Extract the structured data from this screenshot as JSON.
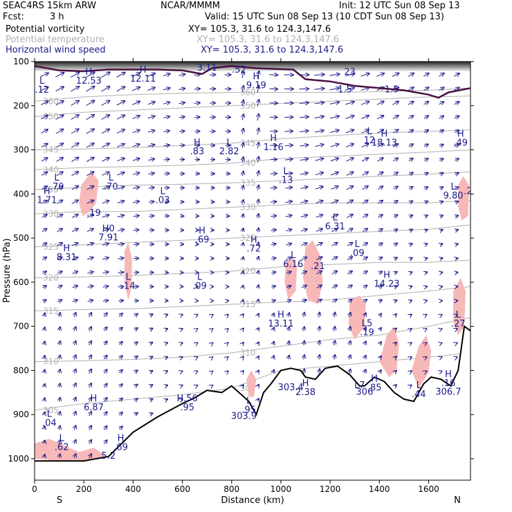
{
  "header": {
    "model": "SEAC4RS 15km ARW",
    "org": "NCAR/MMMM",
    "init": "Init: 12 UTC Sun 08 Sep 13",
    "fcst_label": "Fcst:",
    "fcst_value": "3 h",
    "valid": "Valid: 15 UTC Sun 08 Sep 13 (10 CDT Sun 08 Sep 13)",
    "fields": [
      {
        "name": "Potential vorticity",
        "xy": "XY= 105.3, 31.6 to 124.3,147.6",
        "color": "#000000"
      },
      {
        "name": "Potential temperature",
        "xy": "XY= 105.3, 31.6 to 124.3,147.6",
        "color": "#b0b0b0"
      },
      {
        "name": "Horizontal wind speed",
        "xy": "XY= 105.3, 31.6 to 124.3,147.6",
        "color": "#1a1a8c"
      }
    ]
  },
  "chart_data": {
    "type": "cross-section",
    "xlabel": "Distance (km)",
    "ylabel": "Pressure (hPa)",
    "xlim": [
      0,
      1770
    ],
    "ylim": [
      1050,
      100
    ],
    "x_ticks": [
      0,
      200,
      400,
      600,
      800,
      1000,
      1200,
      1400,
      1600
    ],
    "y_ticks": [
      100,
      200,
      300,
      400,
      500,
      600,
      700,
      800,
      900,
      1000
    ],
    "endpoints": {
      "left": "S",
      "right": "N"
    },
    "colors": {
      "theta": "#b0b0b0",
      "wind": "#1a1a8c",
      "pv_fill": "#f7b8b8",
      "terrain": "#000000",
      "trop": "#4a1040"
    },
    "theta_isolines": [
      {
        "label": "305",
        "values": [
          [
            0,
            890
          ],
          [
            200,
            875
          ],
          [
            400,
            865
          ],
          [
            600,
            855
          ],
          [
            800,
            840
          ],
          [
            1000,
            800
          ],
          [
            1200,
            790
          ],
          [
            1400,
            780
          ],
          [
            1600,
            770
          ],
          [
            1770,
            760
          ]
        ]
      },
      {
        "label": "310",
        "values": [
          [
            0,
            780
          ],
          [
            200,
            778
          ],
          [
            400,
            775
          ],
          [
            600,
            770
          ],
          [
            800,
            760
          ],
          [
            1000,
            745
          ],
          [
            1200,
            730
          ],
          [
            1400,
            720
          ],
          [
            1600,
            700
          ],
          [
            1770,
            680
          ]
        ]
      },
      {
        "label": "315",
        "values": [
          [
            0,
            665
          ],
          [
            200,
            662
          ],
          [
            400,
            660
          ],
          [
            600,
            655
          ],
          [
            800,
            650
          ],
          [
            1000,
            645
          ],
          [
            1200,
            640
          ],
          [
            1400,
            630
          ],
          [
            1600,
            620
          ],
          [
            1770,
            610
          ]
        ]
      },
      {
        "label": "320",
        "values": [
          [
            0,
            590
          ],
          [
            200,
            588
          ],
          [
            400,
            585
          ],
          [
            600,
            580
          ],
          [
            800,
            575
          ],
          [
            1000,
            565
          ],
          [
            1200,
            560
          ],
          [
            1400,
            555
          ],
          [
            1600,
            555
          ],
          [
            1770,
            550
          ]
        ]
      },
      {
        "label": "325",
        "values": [
          [
            0,
            520
          ],
          [
            200,
            515
          ],
          [
            400,
            510
          ],
          [
            600,
            505
          ],
          [
            800,
            500
          ],
          [
            1000,
            495
          ],
          [
            1200,
            490
          ],
          [
            1400,
            485
          ],
          [
            1600,
            480
          ],
          [
            1770,
            470
          ]
        ]
      },
      {
        "label": "330",
        "values": [
          [
            0,
            445
          ],
          [
            200,
            440
          ],
          [
            400,
            440
          ],
          [
            600,
            435
          ],
          [
            800,
            430
          ],
          [
            1000,
            425
          ],
          [
            1200,
            420
          ],
          [
            1400,
            420
          ],
          [
            1600,
            420
          ],
          [
            1770,
            415
          ]
        ]
      },
      {
        "label": "335",
        "values": [
          [
            0,
            390
          ],
          [
            200,
            385
          ],
          [
            400,
            380
          ],
          [
            600,
            378
          ],
          [
            800,
            375
          ],
          [
            1000,
            370
          ],
          [
            1200,
            365
          ],
          [
            1400,
            360
          ],
          [
            1600,
            355
          ],
          [
            1770,
            350
          ]
        ]
      },
      {
        "label": "340",
        "values": [
          [
            0,
            345
          ],
          [
            200,
            340
          ],
          [
            400,
            338
          ],
          [
            600,
            335
          ],
          [
            800,
            330
          ],
          [
            1000,
            320
          ],
          [
            1200,
            315
          ],
          [
            1400,
            310
          ],
          [
            1600,
            305
          ],
          [
            1770,
            300
          ]
        ]
      },
      {
        "label": "345",
        "values": [
          [
            0,
            300
          ],
          [
            200,
            298
          ],
          [
            400,
            295
          ],
          [
            600,
            290
          ],
          [
            800,
            285
          ],
          [
            1000,
            275
          ],
          [
            1200,
            268
          ],
          [
            1400,
            262
          ],
          [
            1600,
            258
          ],
          [
            1770,
            255
          ]
        ]
      },
      {
        "label": "350",
        "values": [
          [
            0,
            225
          ],
          [
            200,
            215
          ],
          [
            400,
            210
          ],
          [
            600,
            205
          ],
          [
            800,
            200
          ],
          [
            1000,
            195
          ],
          [
            1200,
            190
          ],
          [
            1400,
            185
          ],
          [
            1600,
            180
          ],
          [
            1770,
            178
          ]
        ]
      },
      {
        "label": "360",
        "values": [
          [
            0,
            190
          ],
          [
            200,
            180
          ],
          [
            400,
            175
          ],
          [
            600,
            172
          ],
          [
            800,
            170
          ],
          [
            1000,
            170
          ],
          [
            1200,
            170
          ],
          [
            1400,
            168
          ],
          [
            1600,
            165
          ],
          [
            1770,
            160
          ]
        ]
      }
    ],
    "terrain": [
      [
        0,
        1005
      ],
      [
        100,
        1005
      ],
      [
        200,
        1005
      ],
      [
        300,
        995
      ],
      [
        400,
        940
      ],
      [
        500,
        905
      ],
      [
        600,
        875
      ],
      [
        650,
        862
      ],
      [
        700,
        845
      ],
      [
        760,
        850
      ],
      [
        800,
        835
      ],
      [
        840,
        855
      ],
      [
        870,
        870
      ],
      [
        900,
        900
      ],
      [
        930,
        850
      ],
      [
        960,
        830
      ],
      [
        1000,
        800
      ],
      [
        1040,
        795
      ],
      [
        1080,
        800
      ],
      [
        1100,
        815
      ],
      [
        1140,
        820
      ],
      [
        1180,
        795
      ],
      [
        1230,
        790
      ],
      [
        1280,
        810
      ],
      [
        1320,
        835
      ],
      [
        1340,
        835
      ],
      [
        1380,
        815
      ],
      [
        1420,
        825
      ],
      [
        1460,
        850
      ],
      [
        1500,
        865
      ],
      [
        1540,
        870
      ],
      [
        1580,
        830
      ],
      [
        1610,
        815
      ],
      [
        1650,
        820
      ],
      [
        1690,
        835
      ],
      [
        1720,
        800
      ],
      [
        1745,
        700
      ],
      [
        1770,
        710
      ]
    ],
    "tropopause": [
      [
        0,
        110
      ],
      [
        100,
        120
      ],
      [
        200,
        122
      ],
      [
        300,
        118
      ],
      [
        400,
        118
      ],
      [
        500,
        118
      ],
      [
        600,
        120
      ],
      [
        680,
        128
      ],
      [
        720,
        115
      ],
      [
        800,
        110
      ],
      [
        900,
        115
      ],
      [
        1050,
        118
      ],
      [
        1100,
        140
      ],
      [
        1200,
        145
      ],
      [
        1300,
        155
      ],
      [
        1400,
        160
      ],
      [
        1500,
        165
      ],
      [
        1600,
        175
      ],
      [
        1640,
        182
      ],
      [
        1680,
        170
      ],
      [
        1770,
        160
      ]
    ],
    "pv_patches": [
      {
        "points": [
          [
            190,
            380
          ],
          [
            230,
            350
          ],
          [
            260,
            370
          ],
          [
            250,
            420
          ],
          [
            225,
            440
          ],
          [
            195,
            450
          ],
          [
            180,
            420
          ]
        ]
      },
      {
        "points": [
          [
            365,
            530
          ],
          [
            380,
            510
          ],
          [
            395,
            545
          ],
          [
            395,
            610
          ],
          [
            380,
            640
          ],
          [
            365,
            600
          ]
        ]
      },
      {
        "points": [
          [
            1020,
            555
          ],
          [
            1050,
            545
          ],
          [
            1065,
            570
          ],
          [
            1060,
            620
          ],
          [
            1030,
            640
          ],
          [
            1015,
            600
          ]
        ]
      },
      {
        "points": [
          [
            1100,
            520
          ],
          [
            1130,
            505
          ],
          [
            1160,
            540
          ],
          [
            1170,
            600
          ],
          [
            1150,
            650
          ],
          [
            1110,
            640
          ],
          [
            1090,
            590
          ]
        ]
      },
      {
        "points": [
          [
            1280,
            640
          ],
          [
            1320,
            630
          ],
          [
            1345,
            650
          ],
          [
            1340,
            700
          ],
          [
            1300,
            730
          ],
          [
            1275,
            700
          ]
        ]
      },
      {
        "points": [
          [
            1400,
            780
          ],
          [
            1430,
            720
          ],
          [
            1460,
            700
          ],
          [
            1480,
            740
          ],
          [
            1470,
            800
          ],
          [
            1440,
            815
          ]
        ]
      },
      {
        "points": [
          [
            1530,
            800
          ],
          [
            1560,
            745
          ],
          [
            1590,
            720
          ],
          [
            1610,
            755
          ],
          [
            1600,
            805
          ],
          [
            1560,
            840
          ]
        ]
      },
      {
        "points": [
          [
            1700,
            620
          ],
          [
            1730,
            590
          ],
          [
            1750,
            620
          ],
          [
            1745,
            700
          ],
          [
            1720,
            720
          ],
          [
            1700,
            690
          ]
        ]
      },
      {
        "points": [
          [
            1720,
            380
          ],
          [
            1740,
            360
          ],
          [
            1765,
            380
          ],
          [
            1760,
            450
          ],
          [
            1735,
            460
          ],
          [
            1720,
            430
          ]
        ]
      },
      {
        "points": [
          [
            0,
            965
          ],
          [
            60,
            955
          ],
          [
            120,
            970
          ],
          [
            180,
            985
          ],
          [
            240,
            975
          ],
          [
            280,
            990
          ],
          [
            300,
            1005
          ],
          [
            200,
            1005
          ],
          [
            100,
            1005
          ],
          [
            0,
            1000
          ]
        ]
      },
      {
        "points": [
          [
            860,
            820
          ],
          [
            880,
            800
          ],
          [
            900,
            820
          ],
          [
            890,
            860
          ],
          [
            870,
            860
          ]
        ]
      }
    ],
    "pv_labels": [
      {
        "x": 30,
        "p": 150,
        "text": "L\n.12"
      },
      {
        "x": 220,
        "p": 130,
        "text": "H\n12.53"
      },
      {
        "x": 440,
        "p": 125,
        "text": "H\n12.11"
      },
      {
        "x": 700,
        "p": 100,
        "text": "L\n3.11"
      },
      {
        "x": 830,
        "p": 125,
        "text": ".52"
      },
      {
        "x": 900,
        "p": 140,
        "text": "H\n9.19"
      },
      {
        "x": 660,
        "p": 290,
        "text": "H\n.83"
      },
      {
        "x": 790,
        "p": 290,
        "text": "L\n2.82"
      },
      {
        "x": 970,
        "p": 280,
        "text": "H\n1.16"
      },
      {
        "x": 1020,
        "p": 355,
        "text": "L\n.13"
      },
      {
        "x": 1360,
        "p": 265,
        "text": "L\n12"
      },
      {
        "x": 1420,
        "p": 270,
        "text": "H\n18.13"
      },
      {
        "x": 1730,
        "p": 270,
        "text": "H\n.49"
      },
      {
        "x": 90,
        "p": 370,
        "text": "L\n.70"
      },
      {
        "x": 310,
        "p": 370,
        "text": "L\n.70"
      },
      {
        "x": 50,
        "p": 400,
        "text": "H\n1.71"
      },
      {
        "x": 520,
        "p": 400,
        "text": "L\n.03"
      },
      {
        "x": 240,
        "p": 450,
        "text": ".19"
      },
      {
        "x": 300,
        "p": 485,
        "text": "H0\n7.91"
      },
      {
        "x": 680,
        "p": 490,
        "text": "H\n.69"
      },
      {
        "x": 890,
        "p": 510,
        "text": "H\n.72"
      },
      {
        "x": 1220,
        "p": 460,
        "text": "L\n6.31"
      },
      {
        "x": 1310,
        "p": 520,
        "text": "L\n.09"
      },
      {
        "x": 130,
        "p": 530,
        "text": "H\n8.31"
      },
      {
        "x": 1050,
        "p": 545,
        "text": "L\n6.16"
      },
      {
        "x": 1150,
        "p": 570,
        "text": ".21"
      },
      {
        "x": 380,
        "p": 595,
        "text": "L\n.14"
      },
      {
        "x": 670,
        "p": 595,
        "text": "L\n.09"
      },
      {
        "x": 1430,
        "p": 590,
        "text": "H\n14.23"
      },
      {
        "x": 1000,
        "p": 680,
        "text": "H\n13.11"
      },
      {
        "x": 1350,
        "p": 700,
        "text": "L5\n.19"
      },
      {
        "x": 1720,
        "p": 680,
        "text": "L\n.27"
      },
      {
        "x": 1700,
        "p": 390,
        "text": "L\n9.80"
      },
      {
        "x": 1760,
        "p": 400,
        "text": ".2"
      },
      {
        "x": 1100,
        "p": 835,
        "text": "H\n2.38"
      },
      {
        "x": 1380,
        "p": 825,
        "text": "H\n.85"
      },
      {
        "x": 1320,
        "p": 840,
        "text": "L7"
      },
      {
        "x": 1560,
        "p": 840,
        "text": "L\n.44"
      },
      {
        "x": 1680,
        "p": 815,
        "text": "H\n.16"
      },
      {
        "x": 240,
        "p": 870,
        "text": "H\n6.87"
      },
      {
        "x": 620,
        "p": 870,
        "text": "H.56\n.95"
      },
      {
        "x": 870,
        "p": 875,
        "text": "L\n.95"
      },
      {
        "x": 60,
        "p": 905,
        "text": "L\n.04"
      },
      {
        "x": 110,
        "p": 960,
        "text": "L\n.62"
      },
      {
        "x": 350,
        "p": 960,
        "text": "H\n.69"
      }
    ],
    "theta_extra_labels": [
      {
        "x": 1280,
        "p": 130,
        "text": "23"
      },
      {
        "x": 1260,
        "p": 170,
        "text": "1.5"
      },
      {
        "x": 1450,
        "p": 170,
        "text": "1.5"
      },
      {
        "x": 1040,
        "p": 845,
        "text": "303.4"
      },
      {
        "x": 850,
        "p": 910,
        "text": "303.9"
      },
      {
        "x": 1340,
        "p": 855,
        "text": "306"
      },
      {
        "x": 1680,
        "p": 855,
        "text": "306.7"
      },
      {
        "x": 300,
        "p": 1000,
        "text": "5.2"
      }
    ]
  }
}
